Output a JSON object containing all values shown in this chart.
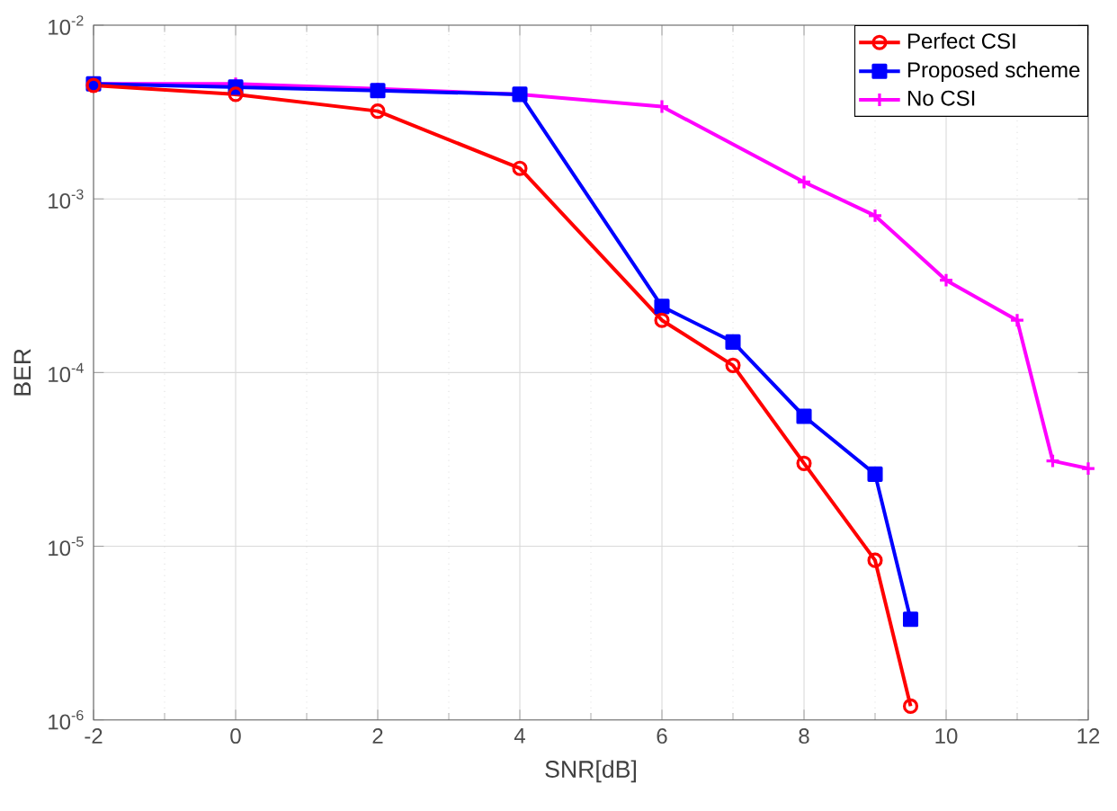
{
  "chart_data": {
    "type": "line",
    "xlabel": "SNR[dB]",
    "ylabel": "BER",
    "log": "y",
    "grid": true,
    "legend": "top right",
    "xlim": [
      -2,
      12
    ],
    "xticks": [
      -2,
      0,
      2,
      4,
      6,
      8,
      10,
      12
    ],
    "ylim": [
      1e-06,
      0.01
    ],
    "yticks": [
      {
        "value": 1e-06,
        "label": "10$^{-6}$"
      },
      {
        "value": 1e-05,
        "label": "10$^{-5}$"
      },
      {
        "value": 0.0001,
        "label": "10$^{-4}$"
      },
      {
        "value": 0.001,
        "label": "10$^{-3}$"
      },
      {
        "value": 0.01,
        "label": "10$^{-2}$"
      }
    ],
    "series": [
      {
        "name": "Perfect CSI",
        "color": "#ff0000",
        "marker": "circle",
        "x": [
          -2,
          0,
          2,
          4,
          6,
          7,
          8,
          9,
          9.5
        ],
        "values": [
          0.0045,
          0.004,
          0.0032,
          0.0015,
          0.0002,
          0.00011,
          3e-05,
          8.3e-06,
          1.2e-06
        ]
      },
      {
        "name": "Proposed scheme",
        "color": "#0000ff",
        "marker": "square",
        "x": [
          -2,
          0,
          2,
          4,
          6,
          7,
          8,
          9,
          9.5
        ],
        "values": [
          0.0046,
          0.0044,
          0.0042,
          0.004,
          0.00024,
          0.00015,
          5.6e-05,
          2.6e-05,
          3.8e-06
        ]
      },
      {
        "name": "No CSI",
        "color": "#ff00ff",
        "marker": "cross",
        "x": [
          -2,
          0,
          2,
          4,
          6,
          8,
          9,
          10,
          11,
          11.5,
          12
        ],
        "values": [
          0.0046,
          0.0046,
          0.0043,
          0.004,
          0.0034,
          0.00125,
          0.0008,
          0.00034,
          0.0002,
          3.1e-05,
          2.8e-05
        ]
      }
    ]
  }
}
